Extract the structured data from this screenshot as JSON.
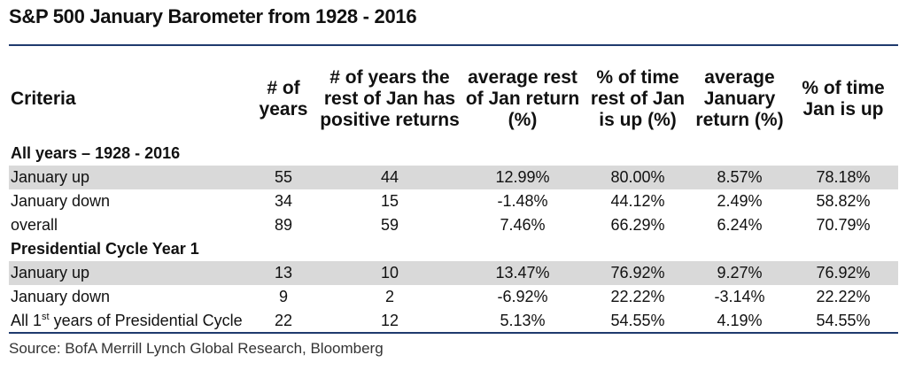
{
  "title": "S&P 500 January Barometer from 1928 - 2016",
  "headers": {
    "criteria": "Criteria",
    "num_years": "# of years",
    "rest_positive": "# of years the rest of Jan has positive returns",
    "avg_rest": "average rest of Jan return (%)",
    "pct_rest_up": "% of time rest of Jan is up (%)",
    "avg_jan": "average January return (%)",
    "pct_jan_up": "% of time Jan is up"
  },
  "sections": [
    {
      "label": "All years – 1928 - 2016",
      "rows": [
        {
          "criteria": "January up",
          "num_years": "55",
          "rest_positive": "44",
          "avg_rest": "12.99%",
          "pct_rest_up": "80.00%",
          "avg_jan": "8.57%",
          "pct_jan_up": "78.18%"
        },
        {
          "criteria": "January down",
          "num_years": "34",
          "rest_positive": "15",
          "avg_rest": "-1.48%",
          "pct_rest_up": "44.12%",
          "avg_jan": "2.49%",
          "pct_jan_up": "58.82%"
        },
        {
          "criteria": "overall",
          "num_years": "89",
          "rest_positive": "59",
          "avg_rest": "7.46%",
          "pct_rest_up": "66.29%",
          "avg_jan": "6.24%",
          "pct_jan_up": "70.79%"
        }
      ]
    },
    {
      "label": "Presidential Cycle Year 1",
      "rows": [
        {
          "criteria": "January up",
          "num_years": "13",
          "rest_positive": "10",
          "avg_rest": "13.47%",
          "pct_rest_up": "76.92%",
          "avg_jan": "9.27%",
          "pct_jan_up": "76.92%"
        },
        {
          "criteria": "January down",
          "num_years": "9",
          "rest_positive": "2",
          "avg_rest": "-6.92%",
          "pct_rest_up": "22.22%",
          "avg_jan": "-3.14%",
          "pct_jan_up": "22.22%"
        },
        {
          "criteria": "All 1st years of Presidential Cycle",
          "num_years": "22",
          "rest_positive": "12",
          "avg_rest": "5.13%",
          "pct_rest_up": "54.55%",
          "avg_jan": "4.19%",
          "pct_jan_up": "54.55%"
        }
      ]
    }
  ],
  "source": "Source: BofA Merrill Lynch Global Research, Bloomberg",
  "colors": {
    "rule": "#1f3a6e",
    "shade": "#d9d9d9"
  }
}
